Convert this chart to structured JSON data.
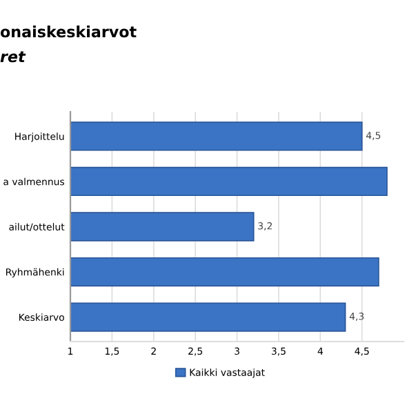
{
  "chart_data": {
    "type": "bar",
    "orientation": "horizontal",
    "title": "onaiskeskiarvot",
    "subtitle": "ret",
    "categories": [
      "Harjoittelu",
      "a valmennus",
      "ailut/ottelut",
      "Ryhmähenki",
      "Keskiarvo"
    ],
    "series": [
      {
        "name": "Kaikki vastaajat",
        "color": "#3b74c4",
        "values": [
          4.5,
          4.8,
          3.2,
          4.7,
          4.3
        ],
        "value_labels": [
          "4,5",
          null,
          "3,2",
          null,
          "4,3"
        ]
      }
    ],
    "xlim": [
      1,
      5
    ],
    "xticks": [
      {
        "value": 1,
        "label": "1"
      },
      {
        "value": 1.5,
        "label": "1,5"
      },
      {
        "value": 2,
        "label": "2"
      },
      {
        "value": 2.5,
        "label": "2,5"
      },
      {
        "value": 3,
        "label": "3"
      },
      {
        "value": 3.5,
        "label": "3,5"
      },
      {
        "value": 4,
        "label": "4"
      },
      {
        "value": 4.5,
        "label": "4,5"
      }
    ],
    "grid": "x",
    "legend": "bottom"
  }
}
